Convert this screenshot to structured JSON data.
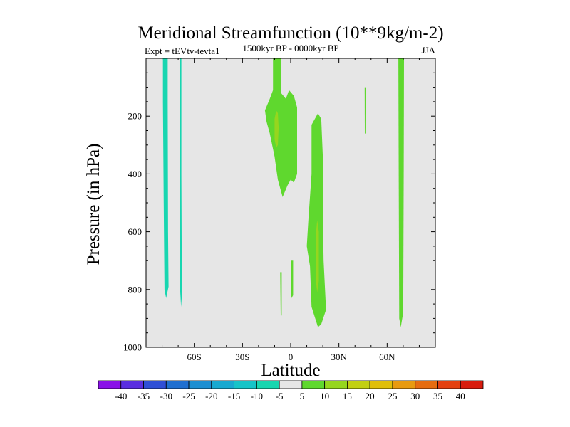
{
  "chart_data": {
    "type": "contour",
    "title": "Meridional Streamfunction (10**9kg/m-2)",
    "subtitle": "1500kyr BP - 0000kyr BP",
    "left_label": "Expt = tEVtv-tevta1",
    "right_label": "JJA",
    "xlabel": "Latitude",
    "ylabel": "Pressure (in hPa)",
    "xlim": [
      -90,
      90
    ],
    "ylim": [
      1000,
      0
    ],
    "x_ticks": [
      {
        "value": -60,
        "label": "60S"
      },
      {
        "value": -30,
        "label": "30S"
      },
      {
        "value": 0,
        "label": "0"
      },
      {
        "value": 30,
        "label": "30N"
      },
      {
        "value": 60,
        "label": "60N"
      }
    ],
    "y_ticks": [
      {
        "value": 200,
        "label": "200"
      },
      {
        "value": 400,
        "label": "400"
      },
      {
        "value": 600,
        "label": "600"
      },
      {
        "value": 800,
        "label": "800"
      },
      {
        "value": 1000,
        "label": "1000"
      }
    ],
    "background_color": "#e6e6e6",
    "colorbar": {
      "levels": [
        "-40",
        "-35",
        "-30",
        "-25",
        "-20",
        "-15",
        "-10",
        "-5",
        "5",
        "10",
        "15",
        "20",
        "25",
        "30",
        "35",
        "40"
      ],
      "colors": [
        "#8a12e8",
        "#5a2ee0",
        "#2f4fd6",
        "#1f6fd0",
        "#1d8fd2",
        "#18a9d0",
        "#16c4c8",
        "#18d6b0",
        "#e6e6e6",
        "#5fd82e",
        "#96d61e",
        "#c2d012",
        "#e0be0a",
        "#e89a10",
        "#e66c10",
        "#e44010",
        "#d81c0e"
      ]
    },
    "regions": [
      {
        "name": "neg-sh-column-1",
        "level": "-5",
        "color": "#18d6b0",
        "points": [
          [
            -79.5,
            0
          ],
          [
            -76.5,
            0
          ],
          [
            -76.5,
            150
          ],
          [
            -76.3,
            600
          ],
          [
            -76,
            790
          ],
          [
            -77.5,
            830
          ],
          [
            -78.5,
            800
          ],
          [
            -79,
            500
          ],
          [
            -79.5,
            150
          ]
        ]
      },
      {
        "name": "neg-sh-column-2",
        "level": "-5",
        "color": "#18d6b0",
        "points": [
          [
            -69,
            0
          ],
          [
            -68,
            0
          ],
          [
            -68,
            400
          ],
          [
            -67.7,
            820
          ],
          [
            -68.2,
            860
          ],
          [
            -68.8,
            800
          ],
          [
            -68.9,
            400
          ]
        ]
      },
      {
        "name": "pos-equatorial-upper",
        "level": "5",
        "color": "#5fd82e",
        "points": [
          [
            -11,
            0
          ],
          [
            -6,
            0
          ],
          [
            -6,
            120
          ],
          [
            -3,
            140
          ],
          [
            -1,
            110
          ],
          [
            2,
            130
          ],
          [
            4,
            170
          ],
          [
            4,
            400
          ],
          [
            2,
            430
          ],
          [
            0,
            420
          ],
          [
            -2,
            440
          ],
          [
            -5,
            480
          ],
          [
            -8,
            420
          ],
          [
            -10,
            340
          ],
          [
            -13,
            260
          ],
          [
            -15,
            220
          ],
          [
            -16,
            180
          ],
          [
            -13,
            140
          ],
          [
            -11,
            110
          ]
        ]
      },
      {
        "name": "pos-equatorial-upper-core",
        "level": "10",
        "color": "#96d61e",
        "points": [
          [
            -10,
            210
          ],
          [
            -9,
            180
          ],
          [
            -8,
            190
          ],
          [
            -7.5,
            240
          ],
          [
            -8,
            300
          ],
          [
            -9,
            310
          ],
          [
            -10,
            280
          ]
        ]
      },
      {
        "name": "pos-nh-subtropical-column",
        "level": "5",
        "color": "#5fd82e",
        "points": [
          [
            13,
            230
          ],
          [
            17,
            190
          ],
          [
            19,
            210
          ],
          [
            20,
            340
          ],
          [
            20,
            520
          ],
          [
            20.5,
            700
          ],
          [
            22,
            870
          ],
          [
            19,
            920
          ],
          [
            17,
            930
          ],
          [
            13,
            860
          ],
          [
            12,
            720
          ],
          [
            10,
            650
          ],
          [
            11,
            560
          ],
          [
            13,
            400
          ]
        ]
      },
      {
        "name": "pos-nh-subtropical-core",
        "level": "10",
        "color": "#96d61e",
        "points": [
          [
            15.5,
            620
          ],
          [
            16.5,
            560
          ],
          [
            17.5,
            600
          ],
          [
            17.5,
            770
          ],
          [
            16.5,
            810
          ],
          [
            15.5,
            760
          ]
        ]
      },
      {
        "name": "pos-nh-midlat-sliver",
        "level": "5",
        "color": "#5fd82e",
        "points": [
          [
            46,
            100
          ],
          [
            46.6,
            100
          ],
          [
            46.5,
            260
          ],
          [
            46.1,
            260
          ]
        ]
      },
      {
        "name": "pos-nh-60n-column",
        "level": "5",
        "color": "#5fd82e",
        "points": [
          [
            67,
            0
          ],
          [
            70.5,
            0
          ],
          [
            70.3,
            400
          ],
          [
            70,
            880
          ],
          [
            68.5,
            930
          ],
          [
            67.5,
            900
          ],
          [
            67.2,
            400
          ]
        ]
      },
      {
        "name": "pos-equator-lower-sliver",
        "level": "5",
        "color": "#5fd82e",
        "points": [
          [
            -6.5,
            740
          ],
          [
            -5.6,
            740
          ],
          [
            -5.6,
            890
          ],
          [
            -6.2,
            890
          ]
        ]
      },
      {
        "name": "pos-lower-flank",
        "level": "5",
        "color": "#5fd82e",
        "points": [
          [
            0,
            700
          ],
          [
            1.5,
            700
          ],
          [
            1.5,
            820
          ],
          [
            0.5,
            830
          ]
        ]
      }
    ]
  }
}
